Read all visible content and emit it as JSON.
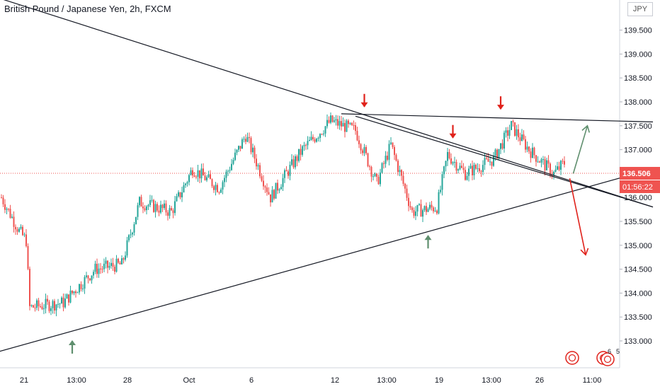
{
  "title": "British Pound / Japanese Yen, 2h, FXCM",
  "currency_button": "JPY",
  "price_label": "136.506",
  "countdown_label": "01:56:22",
  "badge_numbers": [
    "6",
    "5"
  ],
  "colors": {
    "up": "#26a69a",
    "down": "#ef5350",
    "line": "#131722",
    "arrow_red": "#e0221b",
    "arrow_green": "#5f8f6e",
    "price_line": "#ef5350"
  },
  "chart_data": {
    "type": "candlestick",
    "symbol": "GBPJPY",
    "interval": "2h",
    "ylim": [
      132.5,
      140.0
    ],
    "y_ticks": [
      133.0,
      133.5,
      134.0,
      134.5,
      135.0,
      135.5,
      136.0,
      136.5,
      137.0,
      137.5,
      138.0,
      138.5,
      139.0,
      139.5
    ],
    "y_tick_labels": [
      "133.000",
      "133.500",
      "134.000",
      "134.500",
      "135.000",
      "135.500",
      "136.000",
      "136.500",
      "137.000",
      "137.500",
      "138.000",
      "138.500",
      "139.000",
      "139.500"
    ],
    "x_tick_labels": [
      "21",
      "13:00",
      "28",
      "Oct",
      "6",
      "12",
      "13:00",
      "19",
      "13:00",
      "26",
      "11:00"
    ],
    "last_price": 136.506,
    "price_path_anchors": [
      {
        "t": 0,
        "p": 136.0
      },
      {
        "t": 10,
        "p": 135.3
      },
      {
        "t": 14,
        "p": 135.1
      },
      {
        "t": 16,
        "p": 133.7
      },
      {
        "t": 35,
        "p": 133.8
      },
      {
        "t": 40,
        "p": 134.0
      },
      {
        "t": 53,
        "p": 134.5
      },
      {
        "t": 68,
        "p": 134.6
      },
      {
        "t": 78,
        "p": 135.9
      },
      {
        "t": 96,
        "p": 135.7
      },
      {
        "t": 108,
        "p": 136.6
      },
      {
        "t": 123,
        "p": 136.2
      },
      {
        "t": 138,
        "p": 137.3
      },
      {
        "t": 152,
        "p": 136.0
      },
      {
        "t": 170,
        "p": 137.0
      },
      {
        "t": 186,
        "p": 137.6
      },
      {
        "t": 200,
        "p": 137.4
      },
      {
        "t": 212,
        "p": 136.3
      },
      {
        "t": 220,
        "p": 137.1
      },
      {
        "t": 232,
        "p": 135.7
      },
      {
        "t": 246,
        "p": 135.8
      },
      {
        "t": 252,
        "p": 136.9
      },
      {
        "t": 262,
        "p": 136.5
      },
      {
        "t": 278,
        "p": 136.8
      },
      {
        "t": 288,
        "p": 137.5
      },
      {
        "t": 298,
        "p": 137.0
      },
      {
        "t": 312,
        "p": 136.5
      },
      {
        "t": 320,
        "p": 136.8
      },
      {
        "t": 330,
        "p": 136.5
      }
    ],
    "trendlines": [
      {
        "name": "upper-descending-line",
        "from": [
          -4,
          140.2
        ],
        "to": [
          368,
          135.8
        ]
      },
      {
        "name": "resistance-line",
        "from": [
          192,
          137.75
        ],
        "to": [
          368,
          137.58
        ]
      },
      {
        "name": "ascending-support-line",
        "from": [
          -4,
          132.75
        ],
        "to": [
          368,
          136.6
        ]
      },
      {
        "name": "steep-descending-line",
        "from": [
          200,
          137.7
        ],
        "to": [
          368,
          135.8
        ]
      }
    ],
    "annotations": [
      {
        "name": "red-arrow-1",
        "color": "red",
        "direction": "down",
        "t": 205,
        "p": 137.9
      },
      {
        "name": "red-arrow-2",
        "color": "red",
        "direction": "down",
        "t": 255,
        "p": 137.25
      },
      {
        "name": "red-arrow-3",
        "color": "red",
        "direction": "down",
        "t": 282,
        "p": 137.85
      },
      {
        "name": "green-arrow-1",
        "color": "green",
        "direction": "up",
        "t": 40,
        "p": 133.0
      },
      {
        "name": "green-arrow-2",
        "color": "green",
        "direction": "up",
        "t": 241,
        "p": 135.2
      },
      {
        "name": "projection-up",
        "color": "green",
        "direction": "up",
        "from": [
          323,
          136.5
        ],
        "to": [
          331,
          137.5
        ]
      },
      {
        "name": "projection-down",
        "color": "red",
        "direction": "down",
        "from": [
          321,
          136.4
        ],
        "to": [
          330,
          134.8
        ]
      }
    ]
  }
}
